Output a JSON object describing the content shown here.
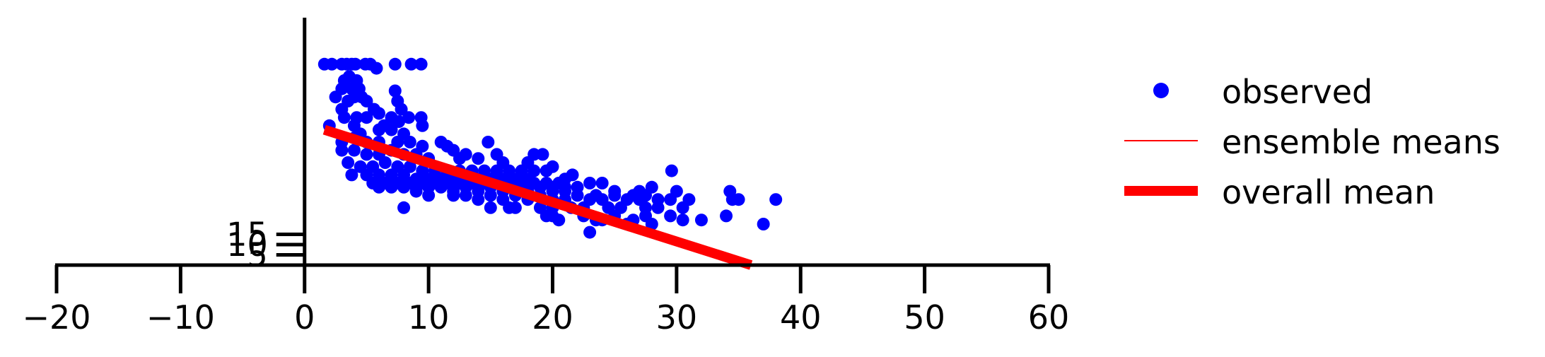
{
  "chart_data": {
    "type": "scatter",
    "title": "",
    "xlabel": "",
    "ylabel": "",
    "xlim": [
      -20,
      60
    ],
    "ylim": [
      0,
      120
    ],
    "x_ticks": [
      -20,
      -10,
      0,
      10,
      20,
      30,
      40,
      50,
      60
    ],
    "y_ticks": [
      5,
      10,
      15
    ],
    "grid": false,
    "legend_position": "right",
    "legend": [
      {
        "label": "observed",
        "kind": "marker",
        "color": "#0000ff"
      },
      {
        "label": "ensemble means",
        "kind": "thin-line",
        "color": "#ff0000"
      },
      {
        "label": "overall mean",
        "kind": "thick-line",
        "color": "#ff0000"
      }
    ],
    "series": [
      {
        "name": "observed",
        "type": "scatter",
        "color": "#0000ff",
        "points": [
          [
            1.6,
            98
          ],
          [
            2.2,
            98
          ],
          [
            3.0,
            98
          ],
          [
            3.4,
            98
          ],
          [
            3.8,
            98
          ],
          [
            4.1,
            98
          ],
          [
            4.9,
            98
          ],
          [
            5.3,
            98
          ],
          [
            7.3,
            98
          ],
          [
            8.6,
            98
          ],
          [
            9.4,
            98
          ],
          [
            5.8,
            96
          ],
          [
            3.2,
            90
          ],
          [
            3.6,
            92
          ],
          [
            4.2,
            90
          ],
          [
            3.0,
            86
          ],
          [
            3.8,
            86
          ],
          [
            4.4,
            86
          ],
          [
            7.3,
            85
          ],
          [
            2.5,
            82
          ],
          [
            3.5,
            80
          ],
          [
            4.0,
            82
          ],
          [
            4.6,
            82
          ],
          [
            5.0,
            80
          ],
          [
            7.5,
            80
          ],
          [
            3.0,
            76
          ],
          [
            5.6,
            76
          ],
          [
            7.8,
            76
          ],
          [
            3.2,
            72
          ],
          [
            4.2,
            72
          ],
          [
            5.0,
            72
          ],
          [
            6.0,
            74
          ],
          [
            7.0,
            72
          ],
          [
            8.4,
            72
          ],
          [
            9.4,
            72
          ],
          [
            2.0,
            68
          ],
          [
            4.0,
            68
          ],
          [
            6.4,
            68
          ],
          [
            7.6,
            70
          ],
          [
            9.5,
            68
          ],
          [
            6.0,
            66
          ],
          [
            7.0,
            66
          ],
          [
            8.0,
            64
          ],
          [
            11.0,
            60
          ],
          [
            14.8,
            60
          ],
          [
            4.5,
            64
          ],
          [
            3.0,
            60
          ],
          [
            4.0,
            62
          ],
          [
            5.0,
            60
          ],
          [
            6.0,
            60
          ],
          [
            7.5,
            60
          ],
          [
            8.5,
            60
          ],
          [
            9.5,
            58
          ],
          [
            11.5,
            58
          ],
          [
            12.0,
            56
          ],
          [
            13.0,
            54
          ],
          [
            15.5,
            54
          ],
          [
            18.5,
            54
          ],
          [
            19.2,
            54
          ],
          [
            3.0,
            56
          ],
          [
            4.0,
            56
          ],
          [
            5.0,
            54
          ],
          [
            6.0,
            54
          ],
          [
            7.0,
            56
          ],
          [
            8.0,
            54
          ],
          [
            9.0,
            54
          ],
          [
            10.0,
            52
          ],
          [
            12.5,
            52
          ],
          [
            14.0,
            52
          ],
          [
            16.0,
            50
          ],
          [
            18.0,
            50
          ],
          [
            20.0,
            48
          ],
          [
            29.6,
            46
          ],
          [
            3.5,
            50
          ],
          [
            4.5,
            48
          ],
          [
            5.5,
            48
          ],
          [
            6.5,
            50
          ],
          [
            7.5,
            48
          ],
          [
            8.5,
            48
          ],
          [
            9.5,
            46
          ],
          [
            10.5,
            46
          ],
          [
            11.5,
            46
          ],
          [
            12.5,
            46
          ],
          [
            13.5,
            46
          ],
          [
            14.5,
            46
          ],
          [
            15.5,
            46
          ],
          [
            16.5,
            46
          ],
          [
            17.5,
            46
          ],
          [
            18.5,
            46
          ],
          [
            19.5,
            46
          ],
          [
            3.8,
            44
          ],
          [
            5.0,
            44
          ],
          [
            6.0,
            44
          ],
          [
            7.0,
            44
          ],
          [
            8.0,
            44
          ],
          [
            9.0,
            42
          ],
          [
            10.0,
            42
          ],
          [
            11.0,
            42
          ],
          [
            12.0,
            42
          ],
          [
            13.0,
            42
          ],
          [
            14.0,
            42
          ],
          [
            15.0,
            42
          ],
          [
            16.0,
            42
          ],
          [
            17.0,
            42
          ],
          [
            18.0,
            42
          ],
          [
            21.0,
            42
          ],
          [
            21.6,
            44
          ],
          [
            5.5,
            40
          ],
          [
            6.5,
            40
          ],
          [
            7.5,
            40
          ],
          [
            8.5,
            40
          ],
          [
            9.5,
            40
          ],
          [
            10.5,
            40
          ],
          [
            11.5,
            40
          ],
          [
            12.5,
            40
          ],
          [
            13.5,
            40
          ],
          [
            14.5,
            40
          ],
          [
            15.5,
            40
          ],
          [
            16.5,
            40
          ],
          [
            17.5,
            40
          ],
          [
            18.5,
            40
          ],
          [
            19.5,
            40
          ],
          [
            20.5,
            40
          ],
          [
            23.0,
            40
          ],
          [
            24.0,
            40
          ],
          [
            6.0,
            38
          ],
          [
            7.0,
            38
          ],
          [
            8.0,
            38
          ],
          [
            10.0,
            38
          ],
          [
            11.0,
            38
          ],
          [
            12.0,
            38
          ],
          [
            13.0,
            38
          ],
          [
            14.0,
            38
          ],
          [
            15.0,
            38
          ],
          [
            16.0,
            38
          ],
          [
            17.0,
            38
          ],
          [
            18.0,
            38
          ],
          [
            19.0,
            38
          ],
          [
            20.0,
            38
          ],
          [
            21.0,
            38
          ],
          [
            22.0,
            38
          ],
          [
            25.0,
            36
          ],
          [
            27.0,
            36
          ],
          [
            28.0,
            38
          ],
          [
            9.0,
            36
          ],
          [
            12.0,
            36
          ],
          [
            14.0,
            36
          ],
          [
            16.0,
            36
          ],
          [
            18.0,
            36
          ],
          [
            20.0,
            36
          ],
          [
            21.0,
            36
          ],
          [
            26.5,
            34
          ],
          [
            27.5,
            34
          ],
          [
            30.0,
            36
          ],
          [
            34.3,
            36
          ],
          [
            10.0,
            34
          ],
          [
            12.0,
            34
          ],
          [
            13.0,
            34
          ],
          [
            15.0,
            34
          ],
          [
            17.0,
            34
          ],
          [
            19.0,
            34
          ],
          [
            22.0,
            34
          ],
          [
            23.5,
            34
          ],
          [
            25.0,
            34
          ],
          [
            28.5,
            32
          ],
          [
            29.5,
            32
          ],
          [
            31.0,
            32
          ],
          [
            34.5,
            32
          ],
          [
            35.0,
            32
          ],
          [
            38.0,
            32
          ],
          [
            14.0,
            32
          ],
          [
            16.0,
            32
          ],
          [
            18.0,
            32
          ],
          [
            20.0,
            32
          ],
          [
            21.0,
            32
          ],
          [
            23.0,
            32
          ],
          [
            24.0,
            32
          ],
          [
            26.0,
            32
          ],
          [
            27.0,
            32
          ],
          [
            8.0,
            28
          ],
          [
            15.0,
            28
          ],
          [
            16.5,
            28
          ],
          [
            17.0,
            28
          ],
          [
            19.0,
            28
          ],
          [
            20.0,
            28
          ],
          [
            21.5,
            28
          ],
          [
            22.5,
            28
          ],
          [
            24.5,
            28
          ],
          [
            25.5,
            28
          ],
          [
            27.5,
            28
          ],
          [
            28.5,
            28
          ],
          [
            30.5,
            28
          ],
          [
            19.5,
            24
          ],
          [
            20.0,
            24
          ],
          [
            20.5,
            22
          ],
          [
            22.5,
            24
          ],
          [
            23.5,
            22
          ],
          [
            24.0,
            22
          ],
          [
            25.0,
            24
          ],
          [
            26.5,
            22
          ],
          [
            27.5,
            24
          ],
          [
            29.5,
            24
          ],
          [
            30.5,
            22
          ],
          [
            32.0,
            22
          ],
          [
            34.0,
            24
          ],
          [
            37.0,
            20
          ],
          [
            26.0,
            20
          ],
          [
            28.0,
            20
          ],
          [
            23.0,
            16
          ]
        ]
      },
      {
        "name": "ensemble means",
        "type": "line",
        "color": "#ff0000",
        "x": [
          1.6,
          36.0
        ],
        "y": [
          66,
          0
        ]
      },
      {
        "name": "overall mean",
        "type": "line",
        "color": "#ff0000",
        "x": [
          1.6,
          36.0
        ],
        "y": [
          66,
          0
        ]
      }
    ]
  }
}
